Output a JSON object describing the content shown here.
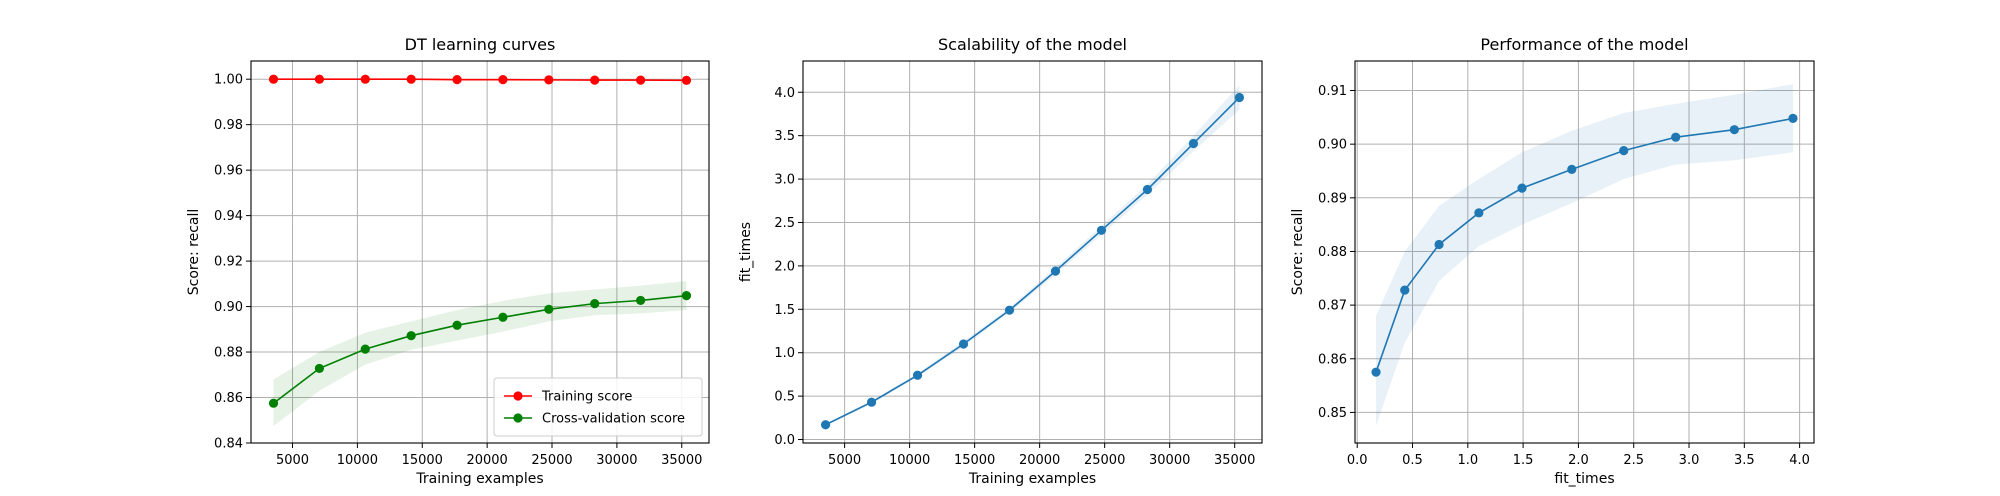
{
  "chart_data": [
    {
      "type": "line",
      "title": "DT learning curves",
      "xlabel": "Training examples",
      "ylabel": "Score: recall",
      "xlim": [
        1800,
        37100
      ],
      "ylim": [
        0.84,
        1.008
      ],
      "xticks": [
        5000,
        10000,
        15000,
        20000,
        25000,
        30000,
        35000
      ],
      "yticks": [
        0.84,
        0.86,
        0.88,
        0.9,
        0.92,
        0.94,
        0.96,
        0.98,
        1.0
      ],
      "tick_decimals": 2,
      "grid": true,
      "legend_position": "lower-right",
      "x": [
        3536,
        7073,
        10609,
        14146,
        17682,
        21218,
        24755,
        28291,
        31828,
        35364
      ],
      "series": [
        {
          "name": "Training score",
          "color": "#ff0000",
          "values": [
            1.0,
            1.0,
            1.0,
            1.0,
            0.9998,
            0.9998,
            0.9997,
            0.9996,
            0.9996,
            0.9995
          ],
          "band_lower": [
            1.0,
            1.0,
            1.0,
            0.9998,
            0.9996,
            0.9996,
            0.9994,
            0.9993,
            0.9993,
            0.9992
          ],
          "band_upper": [
            1.0,
            1.0,
            1.0,
            1.0,
            1.0,
            1.0,
            1.0,
            0.9999,
            0.9999,
            0.9998
          ],
          "band_color": "#ff0000"
        },
        {
          "name": "Cross-validation score",
          "color": "#008000",
          "values": [
            0.8575,
            0.8728,
            0.8813,
            0.8872,
            0.8918,
            0.8953,
            0.8988,
            0.9013,
            0.9027,
            0.9048
          ],
          "band_lower": [
            0.8475,
            0.863,
            0.8745,
            0.881,
            0.885,
            0.889,
            0.8935,
            0.8962,
            0.897,
            0.8985
          ],
          "band_upper": [
            0.868,
            0.88,
            0.8885,
            0.8935,
            0.8985,
            0.9025,
            0.9058,
            0.9075,
            0.9092,
            0.9112
          ],
          "band_color": "#008000"
        }
      ]
    },
    {
      "type": "line",
      "title": "Scalability of the model",
      "xlabel": "Training examples",
      "ylabel": "fit_times",
      "xlim": [
        1800,
        37100
      ],
      "ylim": [
        -0.04,
        4.36
      ],
      "xticks": [
        5000,
        10000,
        15000,
        20000,
        25000,
        30000,
        35000
      ],
      "yticks": [
        0.0,
        0.5,
        1.0,
        1.5,
        2.0,
        2.5,
        3.0,
        3.5,
        4.0
      ],
      "tick_decimals": 1,
      "grid": true,
      "x": [
        3536,
        7073,
        10609,
        14146,
        17682,
        21218,
        24755,
        28291,
        31828,
        35364
      ],
      "series": [
        {
          "name": "",
          "color": "#1f77b4",
          "values": [
            0.17,
            0.43,
            0.74,
            1.1,
            1.49,
            1.94,
            2.41,
            2.88,
            3.41,
            3.94
          ],
          "band_lower": [
            0.16,
            0.41,
            0.72,
            1.07,
            1.46,
            1.9,
            2.36,
            2.82,
            3.32,
            3.8
          ],
          "band_upper": [
            0.18,
            0.45,
            0.76,
            1.13,
            1.52,
            1.98,
            2.46,
            2.94,
            3.5,
            4.08
          ],
          "band_color": "#1f77b4"
        }
      ]
    },
    {
      "type": "line",
      "title": "Performance of the model",
      "xlabel": "fit_times",
      "ylabel": "Score: recall",
      "xlim": [
        -0.02,
        4.13
      ],
      "ylim": [
        0.8443,
        0.9155
      ],
      "xticks": [
        0.0,
        0.5,
        1.0,
        1.5,
        2.0,
        2.5,
        3.0,
        3.5,
        4.0
      ],
      "yticks": [
        0.85,
        0.86,
        0.87,
        0.88,
        0.89,
        0.9,
        0.91
      ],
      "tick_decimals": 2,
      "xtick_decimals": 1,
      "grid": true,
      "x": [
        0.17,
        0.43,
        0.74,
        1.1,
        1.49,
        1.94,
        2.41,
        2.88,
        3.41,
        3.94
      ],
      "series": [
        {
          "name": "",
          "color": "#1f77b4",
          "values": [
            0.8575,
            0.8728,
            0.8813,
            0.8872,
            0.8918,
            0.8953,
            0.8988,
            0.9013,
            0.9027,
            0.9048
          ],
          "band_lower": [
            0.8475,
            0.863,
            0.8745,
            0.881,
            0.885,
            0.889,
            0.8935,
            0.8962,
            0.897,
            0.8985
          ],
          "band_upper": [
            0.868,
            0.88,
            0.8885,
            0.8935,
            0.8985,
            0.9025,
            0.9058,
            0.9075,
            0.9092,
            0.9112
          ],
          "band_color": "#1f77b4"
        }
      ]
    }
  ]
}
